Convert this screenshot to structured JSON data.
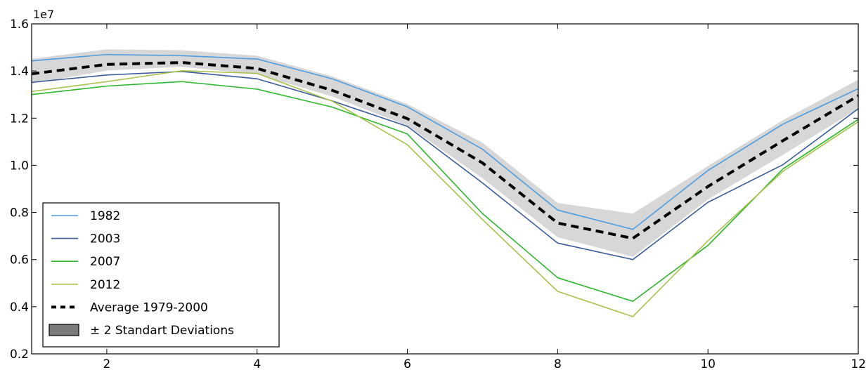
{
  "chart_data": {
    "type": "line",
    "x": [
      1,
      2,
      3,
      4,
      5,
      6,
      7,
      8,
      9,
      10,
      11,
      12
    ],
    "xlim": [
      1,
      12
    ],
    "ylim": [
      0.2,
      1.6
    ],
    "y_exponent_label": "1e7",
    "x_ticks": [
      2,
      4,
      6,
      8,
      10,
      12
    ],
    "x_tick_labels": [
      "2",
      "4",
      "6",
      "8",
      "10",
      "12"
    ],
    "y_ticks": [
      0.2,
      0.4,
      0.6,
      0.8,
      1.0,
      1.2,
      1.4,
      1.6
    ],
    "y_tick_labels": [
      "0.2",
      "0.4",
      "0.6",
      "0.8",
      "1.0",
      "1.2",
      "1.4",
      "1.6"
    ],
    "grid": false,
    "legend_position": "bottom-left",
    "band": {
      "name": "± 2 Standart Deviations",
      "color": "#d7d7d7",
      "lower": [
        1.346,
        1.402,
        1.418,
        1.386,
        1.292,
        1.168,
        0.945,
        0.695,
        0.612,
        0.855,
        1.045,
        1.24
      ],
      "upper": [
        1.452,
        1.492,
        1.488,
        1.465,
        1.377,
        1.26,
        1.096,
        0.84,
        0.795,
        0.997,
        1.192,
        1.363
      ]
    },
    "series": [
      {
        "name": "1982",
        "color": "#4d9de0",
        "dash": false,
        "values": [
          1.443,
          1.47,
          1.465,
          1.451,
          1.367,
          1.248,
          1.068,
          0.81,
          0.728,
          0.978,
          1.175,
          1.325
        ]
      },
      {
        "name": "2003",
        "color": "#3b5c99",
        "dash": false,
        "values": [
          1.352,
          1.383,
          1.398,
          1.367,
          1.273,
          1.165,
          0.925,
          0.67,
          0.6,
          0.843,
          1.003,
          1.24
        ]
      },
      {
        "name": "2007",
        "color": "#2db52d",
        "dash": false,
        "values": [
          1.3,
          1.336,
          1.355,
          1.323,
          1.247,
          1.133,
          0.795,
          0.523,
          0.423,
          0.66,
          0.985,
          1.195
        ]
      },
      {
        "name": "2012",
        "color": "#a6c24c",
        "dash": false,
        "values": [
          1.313,
          1.355,
          1.401,
          1.39,
          1.272,
          1.087,
          0.77,
          0.465,
          0.358,
          0.68,
          0.975,
          1.185
        ]
      },
      {
        "name": "Average 1979-2000",
        "color": "#000000",
        "dash": true,
        "values": [
          1.388,
          1.428,
          1.436,
          1.411,
          1.318,
          1.198,
          1.01,
          0.755,
          0.69,
          0.91,
          1.105,
          1.295
        ]
      }
    ]
  }
}
